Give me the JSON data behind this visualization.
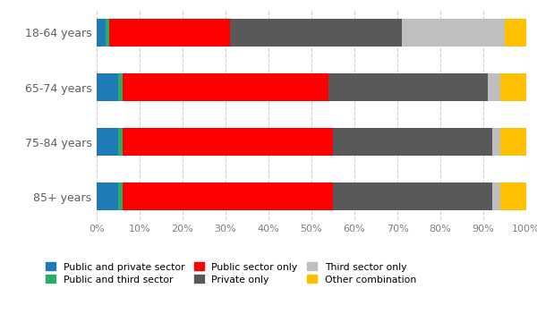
{
  "categories": [
    "18-64 years",
    "65-74 years",
    "75-84 years",
    "85+ years"
  ],
  "series": [
    {
      "label": "Public and private sector",
      "color": "#1F7BB5",
      "values": [
        2,
        5,
        5,
        5
      ]
    },
    {
      "label": "Public and third sector",
      "color": "#2BAD6A",
      "values": [
        1,
        1,
        1,
        1
      ]
    },
    {
      "label": "Public sector only",
      "color": "#FF0000",
      "values": [
        28,
        48,
        49,
        49
      ]
    },
    {
      "label": "Private only",
      "color": "#595959",
      "values": [
        40,
        37,
        37,
        37
      ]
    },
    {
      "label": "Third sector only",
      "color": "#BFBFBF",
      "values": [
        24,
        3,
        2,
        2
      ]
    },
    {
      "label": "Other combination",
      "color": "#FFC000",
      "values": [
        5,
        6,
        6,
        6
      ]
    }
  ],
  "xlim": [
    0,
    100
  ],
  "xtick_values": [
    0,
    10,
    20,
    30,
    40,
    50,
    60,
    70,
    80,
    90,
    100
  ],
  "xtick_labels": [
    "0%",
    "10%",
    "20%",
    "30%",
    "40%",
    "50%",
    "60%",
    "70%",
    "80%",
    "90%",
    "100%"
  ],
  "background_color": "#FFFFFF",
  "grid_color": "#D0D0D0",
  "bar_height": 0.5,
  "tick_label_color": "#808080",
  "ylabel_color": "#606060"
}
